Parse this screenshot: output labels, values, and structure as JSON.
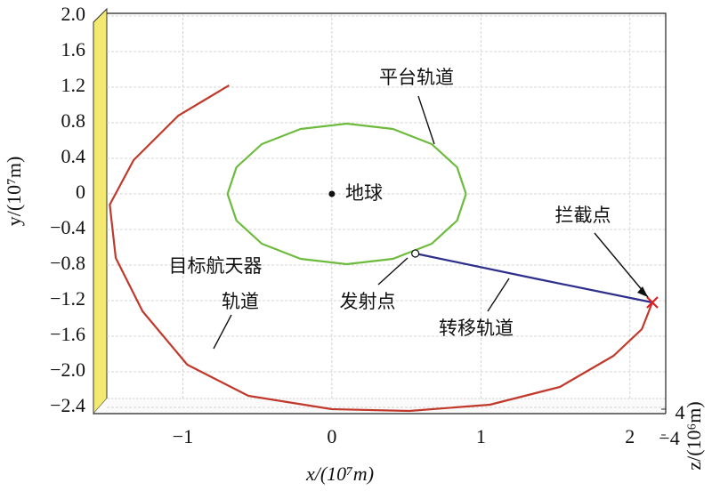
{
  "chart_data": {
    "type": "line3d",
    "xlabel": "x/(10⁷m)",
    "ylabel": "y/(10⁷m)",
    "zlabel": "z/(10⁶m)",
    "xlim": [
      -1.51,
      2.24
    ],
    "ylim": [
      -2.43,
      2.03
    ],
    "xticks": [
      {
        "value": -1,
        "label": "−1"
      },
      0,
      1,
      2
    ],
    "yticks": [
      {
        "value": 2.0,
        "label": "2.0"
      },
      1.6,
      1.2,
      0.8,
      0.4,
      0,
      {
        "value": -0.4,
        "label": "−0.4"
      },
      {
        "value": -0.8,
        "label": "−0.8"
      },
      {
        "value": -1.2,
        "label": "−1.2"
      },
      {
        "value": -1.6,
        "label": "−1.6"
      },
      {
        "value": -2.0,
        "label": "−2.0"
      },
      {
        "value": -2.4,
        "label": "−2.4"
      }
    ],
    "zticks": [
      4,
      {
        "value": -4,
        "label": "−4"
      }
    ],
    "grid": true,
    "series": [
      {
        "color": "#6dbb3c",
        "x": [
          0.9,
          0.84,
          0.67,
          0.41,
          0.1,
          -0.21,
          -0.47,
          -0.64,
          -0.7,
          -0.64,
          -0.47,
          -0.21,
          0.1,
          0.41,
          0.67,
          0.84,
          0.9
        ],
        "y": [
          0,
          0.3,
          0.56,
          0.73,
          0.79,
          0.73,
          0.56,
          0.3,
          0,
          -0.3,
          -0.56,
          -0.73,
          -0.79,
          -0.73,
          -0.56,
          -0.3,
          0
        ]
      },
      {
        "color": "#c0392b",
        "x": [
          -0.69,
          -0.85,
          -1.03,
          -1.33,
          -1.49,
          -1.45,
          -1.27,
          -0.97,
          -0.56,
          0,
          0.52,
          1.06,
          1.53,
          1.89,
          2.08,
          2.15
        ],
        "y": [
          1.22,
          1.06,
          0.88,
          0.38,
          -0.12,
          -0.72,
          -1.32,
          -1.92,
          -2.27,
          -2.42,
          -2.44,
          -2.37,
          -2.17,
          -1.82,
          -1.52,
          -1.22
        ]
      },
      {
        "color": "#2e2e8c",
        "x": [
          0.56,
          1.36,
          2.15
        ],
        "y": [
          -0.67,
          -0.95,
          -1.22
        ]
      }
    ],
    "points": [
      {
        "x": 0,
        "y": 0
      }
    ],
    "annotations": [
      "平台轨道",
      "地球",
      "拦截点",
      "目标航天器",
      "轨道",
      "发射点",
      "转移轨道"
    ]
  }
}
